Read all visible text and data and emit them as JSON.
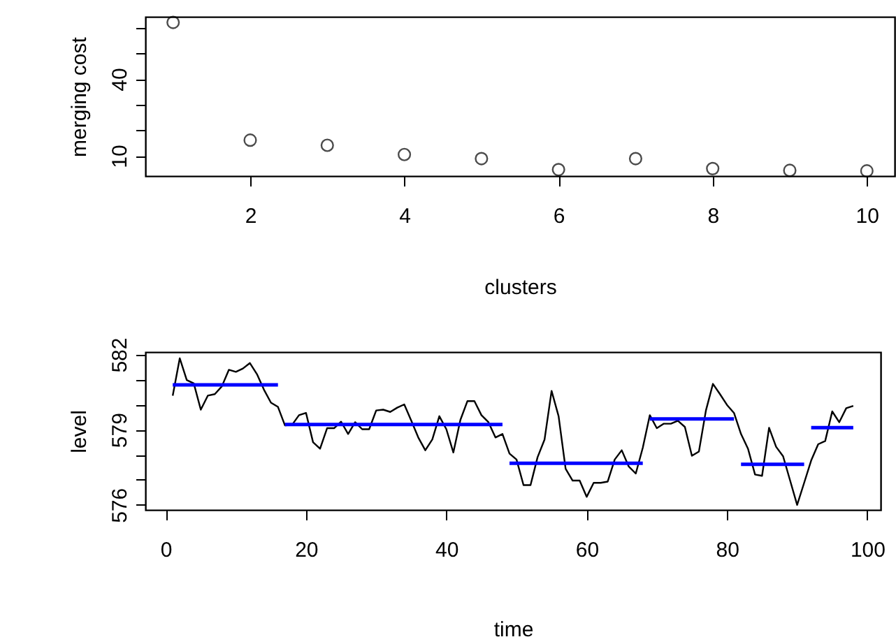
{
  "chart_data": [
    {
      "type": "scatter",
      "xlabel": "clusters",
      "ylabel": "merging cost",
      "marker": "circle",
      "grid": false,
      "x": [
        1,
        2,
        3,
        4,
        5,
        6,
        7,
        8,
        9,
        10
      ],
      "series": [
        {
          "color": "#000000",
          "values": [
            62.1,
            16.1,
            14.1,
            10.5,
            8.9,
            4.6,
            8.9,
            5.0,
            4.3,
            4.1
          ]
        }
      ],
      "xlim": [
        0.64,
        10.36
      ],
      "ylim": [
        2.1,
        64.3
      ],
      "xticks": [
        2,
        4,
        6,
        8,
        10
      ],
      "yticks": [
        10,
        {
          "value": 20,
          "label": null
        },
        {
          "value": 30,
          "label": null
        },
        40,
        {
          "value": 50,
          "label": null
        },
        {
          "value": 60,
          "label": null
        }
      ]
    },
    {
      "type": "line",
      "xlabel": "time",
      "ylabel": "level",
      "grid": false,
      "line_style": "solid",
      "series": [
        {
          "color": "#000000",
          "x": [
            1,
            2,
            3,
            4,
            5,
            6,
            7,
            8,
            9,
            10,
            11,
            12,
            13,
            14,
            15,
            16,
            17,
            18,
            19,
            20,
            21,
            22,
            23,
            24,
            25,
            26,
            27,
            28,
            29,
            30,
            31,
            32,
            33,
            34,
            35,
            36,
            37,
            38,
            39,
            40,
            41,
            42,
            43,
            44,
            45,
            46,
            47,
            48,
            49,
            50,
            51,
            52,
            53,
            54,
            55,
            56,
            57,
            58,
            59,
            60,
            61,
            62,
            63,
            64,
            65,
            66,
            67,
            68,
            69,
            70,
            71,
            72,
            73,
            74,
            75,
            76,
            77,
            78,
            79,
            80,
            81,
            82,
            83,
            84,
            85,
            86,
            87,
            88,
            89,
            90,
            91,
            92,
            93,
            94,
            95,
            96,
            97,
            98
          ],
          "values": [
            580.36,
            581.85,
            580.98,
            580.85,
            579.8,
            580.36,
            580.42,
            580.73,
            581.39,
            581.31,
            581.44,
            581.66,
            581.22,
            580.6,
            580.08,
            579.91,
            579.17,
            579.19,
            579.58,
            579.67,
            578.5,
            578.24,
            579.06,
            579.06,
            579.32,
            578.83,
            579.3,
            579.02,
            579.02,
            579.77,
            579.8,
            579.71,
            579.88,
            580.01,
            579.36,
            578.69,
            578.18,
            578.61,
            579.54,
            579.02,
            578.09,
            579.39,
            580.14,
            580.14,
            579.58,
            579.3,
            578.69,
            578.83,
            578.05,
            577.81,
            576.79,
            576.79,
            577.9,
            578.61,
            580.55,
            579.54,
            577.44,
            576.97,
            576.97,
            576.32,
            576.88,
            576.88,
            576.93,
            577.81,
            578.18,
            577.53,
            577.25,
            578.28,
            579.58,
            579.06,
            579.24,
            579.24,
            579.36,
            579.11,
            577.96,
            578.13,
            579.77,
            580.83,
            580.42,
            579.99,
            579.67,
            578.83,
            578.24,
            577.21,
            577.16,
            579.08,
            578.32,
            577.94,
            576.97,
            576.0,
            576.88,
            577.77,
            578.42,
            578.55,
            579.73,
            579.3,
            579.86,
            579.95
          ]
        },
        {
          "color": "#0000ff",
          "x": [
            1,
            16
          ],
          "values": [
            580.79,
            580.79
          ]
        },
        {
          "color": "#0000ff",
          "x": [
            17,
            48
          ],
          "values": [
            579.21,
            579.21
          ]
        },
        {
          "color": "#0000ff",
          "x": [
            49,
            68
          ],
          "values": [
            577.66,
            577.66
          ]
        },
        {
          "color": "#0000ff",
          "x": [
            69,
            81
          ],
          "values": [
            579.43,
            579.43
          ]
        },
        {
          "color": "#0000ff",
          "x": [
            82,
            91
          ],
          "values": [
            577.62,
            577.62
          ]
        },
        {
          "color": "#0000ff",
          "x": [
            92,
            98
          ],
          "values": [
            579.08,
            579.08
          ]
        }
      ],
      "xlim": [
        -2.9,
        101.9
      ],
      "ylim": [
        575.8,
        582.1
      ],
      "xticks": [
        0,
        20,
        40,
        60,
        80,
        100
      ],
      "yticks": [
        576,
        {
          "value": 577,
          "label": null
        },
        {
          "value": 578,
          "label": null
        },
        579,
        {
          "value": 580,
          "label": null
        },
        {
          "value": 581,
          "label": null
        },
        582
      ]
    }
  ]
}
